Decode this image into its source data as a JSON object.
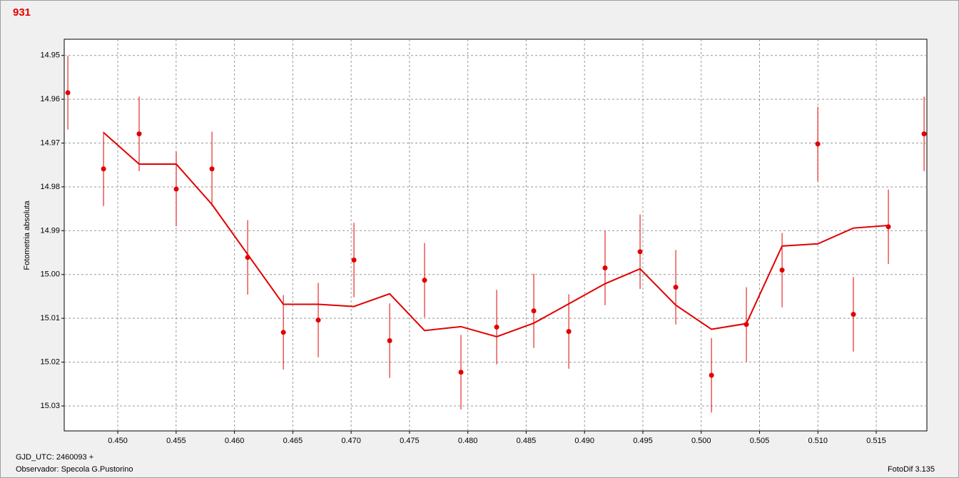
{
  "chart_data": {
    "type": "scatter",
    "title": "931",
    "ylabel": "Fotometria absoluta",
    "footer_left": [
      "GJD_UTC: 2460093 +",
      "Observador: Specola G.Pustorino"
    ],
    "footer_right": "FotoDif 3.135",
    "xlim": [
      0.44541,
      0.51934
    ],
    "ylim": [
      14.9463,
      15.0357
    ],
    "y_inverted": true,
    "grid": true,
    "xticks": [
      {
        "value": 0.45,
        "label": "0.450"
      },
      0.455,
      {
        "value": 0.46,
        "label": "0.460"
      },
      0.465,
      {
        "value": 0.47,
        "label": "0.470"
      },
      0.475,
      {
        "value": 0.48,
        "label": "0.480"
      },
      0.485,
      {
        "value": 0.49,
        "label": "0.490"
      },
      0.495,
      {
        "value": 0.5,
        "label": "0.500"
      },
      0.505,
      {
        "value": 0.51,
        "label": "0.510"
      },
      0.515
    ],
    "yticks": [
      14.95,
      14.96,
      14.97,
      14.98,
      14.99,
      {
        "value": 15.0,
        "label": "15.00"
      },
      15.01,
      15.02,
      15.03
    ],
    "series": [
      {
        "color": "#e00000",
        "x": [
          0.44572,
          0.44878,
          0.45183,
          0.45501,
          0.45807,
          0.46113,
          0.46419,
          0.46718,
          0.47024,
          0.4733,
          0.47629,
          0.47941,
          0.48247,
          0.48565,
          0.48865,
          0.49176,
          0.49476,
          0.49782,
          0.50088,
          0.50387,
          0.50693,
          0.50999,
          0.51304,
          0.51604,
          0.5191
        ],
        "values": [
          14.9585,
          14.9759,
          14.9679,
          14.9805,
          14.9759,
          14.9961,
          15.0132,
          15.0104,
          14.9967,
          15.0151,
          15.0013,
          15.0223,
          15.012,
          15.0083,
          15.013,
          14.9985,
          14.9948,
          15.0029,
          15.023,
          15.0114,
          14.999,
          14.9702,
          15.0091,
          14.9891,
          14.9679
        ],
        "errors": [
          0.0084,
          0.0085,
          0.0085,
          0.0085,
          0.0085,
          0.0085,
          0.0085,
          0.0085,
          0.0085,
          0.0085,
          0.0085,
          0.0085,
          0.0085,
          0.0085,
          0.0085,
          0.0085,
          0.0085,
          0.0085,
          0.0085,
          0.0085,
          0.0085,
          0.0085,
          0.0085,
          0.0085,
          0.0085
        ]
      },
      {
        "type": "line",
        "color": "#e00000",
        "x": [
          0.44878,
          0.45183,
          0.45501,
          0.45807,
          0.46113,
          0.46419,
          0.46718,
          0.47024,
          0.4733,
          0.47629,
          0.47941,
          0.48247,
          0.48565,
          0.48865,
          0.49176,
          0.49476,
          0.49782,
          0.50088,
          0.50387,
          0.50693,
          0.50999,
          0.51304,
          0.51604
        ],
        "values": [
          14.9676,
          14.9748,
          14.9748,
          14.984,
          14.9954,
          15.0068,
          15.0068,
          15.0073,
          15.0044,
          15.0128,
          15.0119,
          15.0142,
          15.0111,
          15.0067,
          15.0021,
          14.9987,
          15.007,
          15.0125,
          15.0112,
          14.9935,
          14.993,
          14.9894,
          14.9888
        ]
      }
    ]
  }
}
